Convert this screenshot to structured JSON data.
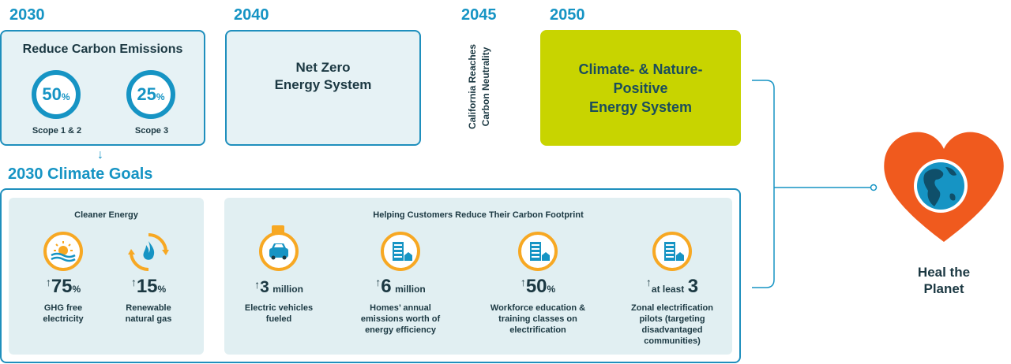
{
  "years": {
    "y2030": "2030",
    "y2040": "2040",
    "y2045": "2045",
    "y2050": "2050"
  },
  "reduce": {
    "title": "Reduce Carbon Emissions",
    "scope12": {
      "value": "50",
      "unit": "%",
      "label": "Scope 1 & 2"
    },
    "scope3": {
      "value": "25",
      "unit": "%",
      "label": "Scope 3"
    }
  },
  "net_zero": {
    "line1": "Net Zero",
    "line2": "Energy System"
  },
  "california": {
    "line1": "California Reaches",
    "line2": "Carbon Neutrality"
  },
  "climate_positive": {
    "line1": "Climate- & Nature-",
    "line2": "Positive",
    "line3": "Energy System"
  },
  "goals_title": "2030 Climate Goals",
  "cleaner_energy": {
    "title": "Cleaner Energy",
    "ghg": {
      "arrow": "↑",
      "value": "75",
      "unit": "%",
      "line1": "GHG free",
      "line2": "electricity"
    },
    "rng": {
      "arrow": "↑",
      "value": "15",
      "unit": "%",
      "line1": "Renewable",
      "line2": "natural gas"
    }
  },
  "customers": {
    "title": "Helping Customers Reduce Their Carbon Footprint",
    "ev": {
      "arrow": "↑",
      "value": "3",
      "unit": "million",
      "line1": "Electric vehicles",
      "line2": "fueled"
    },
    "homes": {
      "arrow": "↑",
      "value": "6",
      "unit": "million",
      "line1": "Homes’ annual",
      "line2": "emissions worth of",
      "line3": "energy efficiency"
    },
    "workforce": {
      "arrow": "↑",
      "value": "50",
      "unit": "%",
      "line1": "Workforce education &",
      "line2": "training classes on",
      "line3": "electrification"
    },
    "zonal": {
      "arrow": "↑",
      "prefix": "at least",
      "value": "3",
      "line1": "Zonal electrification",
      "line2": "pilots (targeting",
      "line3": "disadvantaged",
      "line4": "communities)"
    }
  },
  "heal": {
    "line1": "Heal the",
    "line2": "Planet"
  },
  "colors": {
    "blue": "#1694c4",
    "green": "#c8d400",
    "orange": "#f7a823",
    "heart": "#f05a1e"
  },
  "icons": [
    "sun-icon",
    "flame-recycle-icon",
    "ev-plug-icon",
    "building-icon",
    "heart-globe-icon"
  ]
}
